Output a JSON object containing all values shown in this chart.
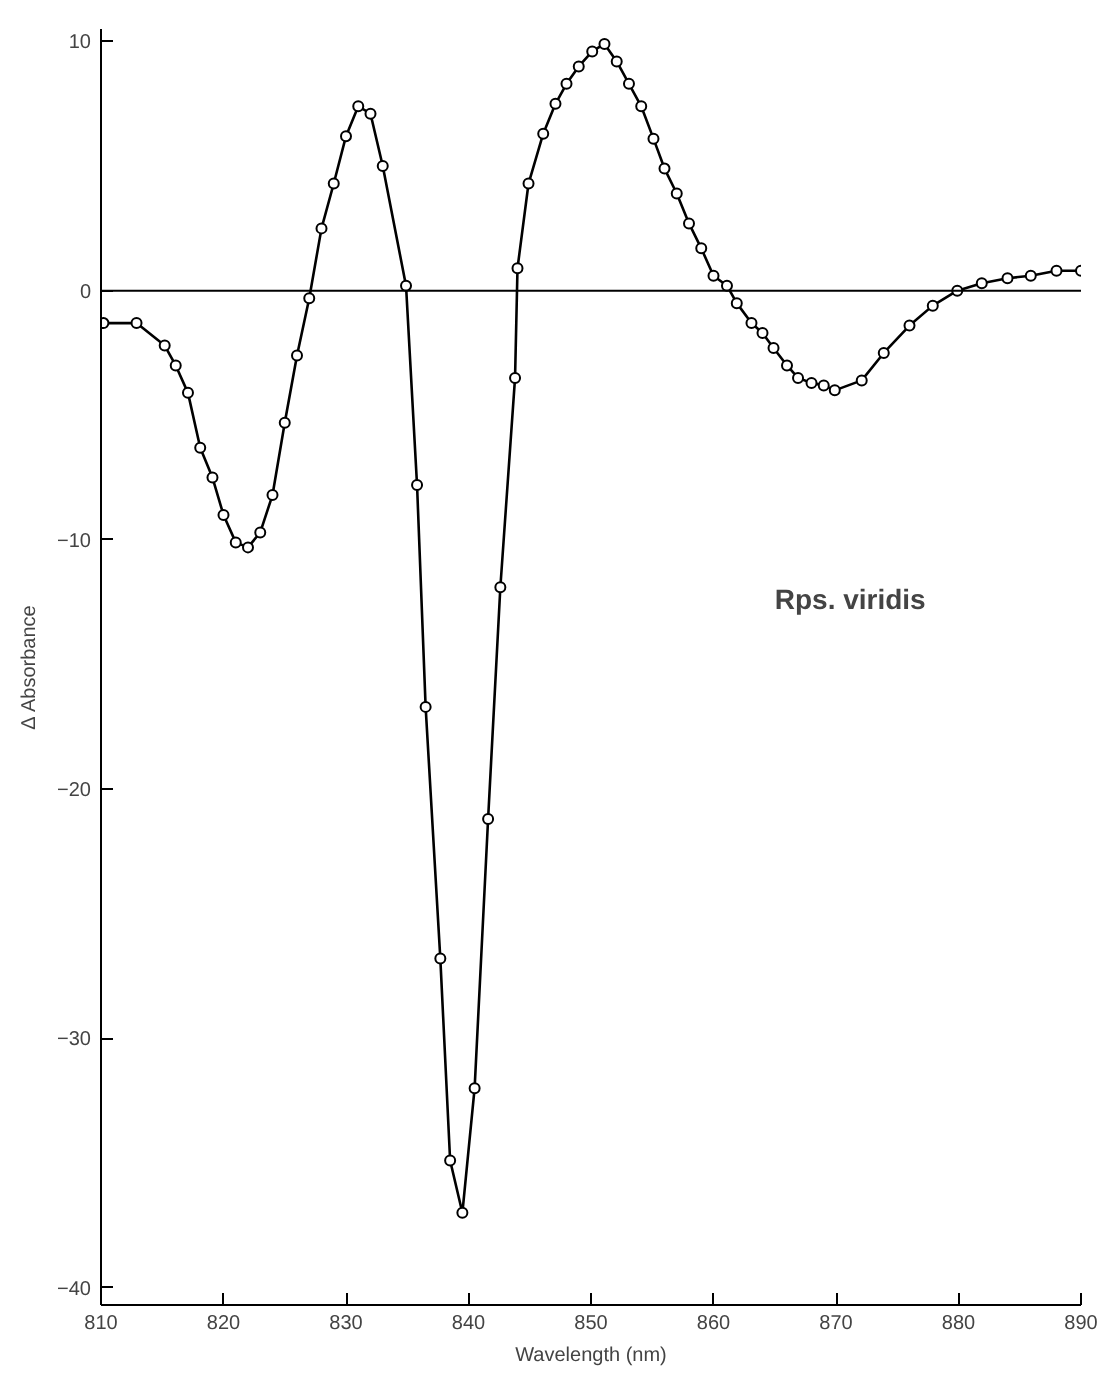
{
  "chart_data": {
    "type": "line",
    "xlabel": "Wavelength (nm)",
    "ylabel": "Δ Absorbance",
    "annotations": [
      "Rps. viridis"
    ],
    "x": [
      810.2,
      812.9,
      815.2,
      816.1,
      817.1,
      818.1,
      819.1,
      820.0,
      821.0,
      822.0,
      823.0,
      824.0,
      825.0,
      826.0,
      827.0,
      828.0,
      829.0,
      830.0,
      831.0,
      832.0,
      833.0,
      834.9,
      835.8,
      836.5,
      837.7,
      838.5,
      839.5,
      840.5,
      841.6,
      842.6,
      843.8,
      844.0,
      844.9,
      846.1,
      847.1,
      848.0,
      849.0,
      850.1,
      851.1,
      852.1,
      853.1,
      854.1,
      855.1,
      856.0,
      857.0,
      858.0,
      859.0,
      860.0,
      861.1,
      861.9,
      863.1,
      864.0,
      864.9,
      866.0,
      866.9,
      868.0,
      869.0,
      869.9,
      872.1,
      873.9,
      876.0,
      877.9,
      879.9,
      881.9,
      884.0,
      885.9,
      888.0,
      890.0
    ],
    "series": [
      {
        "color": "#000000",
        "values": [
          -1.3,
          -1.3,
          -2.2,
          -3.0,
          -4.1,
          -6.3,
          -7.5,
          -9.0,
          -10.1,
          -10.3,
          -9.7,
          -8.2,
          -5.3,
          -2.6,
          -0.3,
          2.5,
          4.3,
          6.2,
          7.4,
          7.1,
          5.0,
          0.2,
          -7.8,
          -16.7,
          -26.8,
          -34.9,
          -37.0,
          -32.0,
          -21.2,
          -11.9,
          -3.5,
          0.9,
          4.3,
          6.3,
          7.5,
          8.3,
          9.0,
          9.6,
          9.9,
          9.2,
          8.3,
          7.4,
          6.1,
          4.9,
          3.9,
          2.7,
          1.7,
          0.6,
          0.2,
          -0.5,
          -1.3,
          -1.7,
          -2.3,
          -3.0,
          -3.5,
          -3.7,
          -3.8,
          -4.0,
          -3.6,
          -2.5,
          -1.4,
          -0.6,
          0.0,
          0.3,
          0.5,
          0.6,
          0.8,
          0.8
        ]
      }
    ],
    "marker": "circle",
    "line_style": "solid",
    "xlim": [
      810,
      890
    ],
    "ylim": [
      -40.7,
      10.5
    ],
    "xticks": [
      810,
      820,
      830,
      840,
      850,
      860,
      870,
      880,
      890
    ],
    "yticks": [
      10,
      0,
      -10,
      -20,
      -30,
      -40
    ],
    "ref_lines": [
      {
        "axis": "y",
        "value": 0,
        "label": null
      }
    ],
    "grid": false
  }
}
